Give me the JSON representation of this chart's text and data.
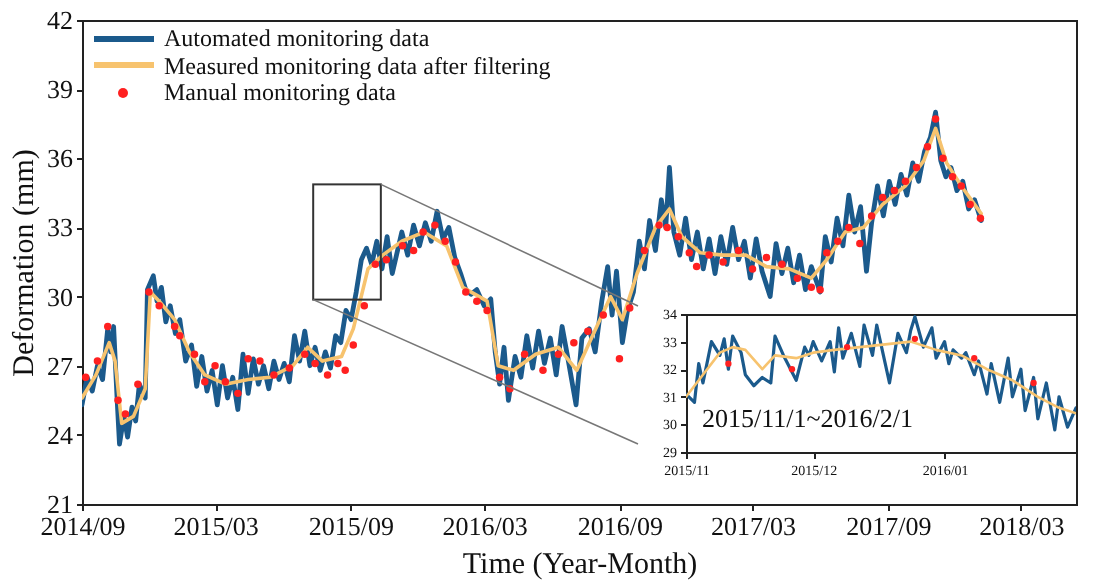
{
  "chart_data": [
    {
      "type": "line",
      "xlabel": "Time (Year-Month)",
      "ylabel": "Deformation (mm)",
      "xlim": [
        "2014-09-01",
        "2018-05-15"
      ],
      "ylim": [
        21,
        42
      ],
      "xticks": [
        {
          "value": "2014-09",
          "label": "2014/09"
        },
        {
          "value": "2015-03",
          "label": "2015/03"
        },
        {
          "value": "2015-09",
          "label": "2015/09"
        },
        {
          "value": "2016-03",
          "label": "2016/03"
        },
        {
          "value": "2016-09",
          "label": "2016/09"
        },
        {
          "value": "2017-03",
          "label": "2017/03"
        },
        {
          "value": "2017-09",
          "label": "2017/09"
        },
        {
          "value": "2018-03",
          "label": "2018/03"
        }
      ],
      "yticks": [
        21,
        24,
        27,
        30,
        33,
        36,
        39,
        42
      ],
      "legend": "top left",
      "series": [
        {
          "name": "Automated monitoring data",
          "color": "#1b5a8c",
          "x": [
            "2014-09-01",
            "2014-09-08",
            "2014-09-15",
            "2014-09-22",
            "2014-09-29",
            "2014-10-06",
            "2014-10-10",
            "2014-10-14",
            "2014-10-19",
            "2014-10-22",
            "2014-10-28",
            "2014-11-02",
            "2014-11-08",
            "2014-11-13",
            "2014-11-18",
            "2014-11-26",
            "2014-11-29",
            "2014-12-07",
            "2014-12-12",
            "2014-12-18",
            "2014-12-24",
            "2014-12-30",
            "2015-01-06",
            "2015-01-12",
            "2015-01-20",
            "2015-01-28",
            "2015-02-04",
            "2015-02-11",
            "2015-02-18",
            "2015-02-25",
            "2015-03-04",
            "2015-03-11",
            "2015-03-18",
            "2015-03-25",
            "2015-04-01",
            "2015-04-08",
            "2015-04-15",
            "2015-04-22",
            "2015-04-29",
            "2015-05-06",
            "2015-05-13",
            "2015-05-20",
            "2015-05-27",
            "2015-06-03",
            "2015-06-10",
            "2015-06-17",
            "2015-06-24",
            "2015-07-01",
            "2015-07-08",
            "2015-07-15",
            "2015-07-22",
            "2015-07-29",
            "2015-08-05",
            "2015-08-12",
            "2015-08-19",
            "2015-08-26",
            "2015-09-02",
            "2015-09-09",
            "2015-09-16",
            "2015-09-23",
            "2015-09-30",
            "2015-10-07",
            "2015-10-14",
            "2015-10-21",
            "2015-10-28",
            "2015-11-10",
            "2015-11-18",
            "2015-11-26",
            "2015-12-04",
            "2015-12-12",
            "2015-12-20",
            "2015-12-28",
            "2016-01-05",
            "2016-01-13",
            "2016-01-21",
            "2016-01-29",
            "2016-02-05",
            "2016-02-12",
            "2016-02-20",
            "2016-03-01",
            "2016-03-10",
            "2016-03-16",
            "2016-03-22",
            "2016-03-28",
            "2016-04-03",
            "2016-04-12",
            "2016-04-20",
            "2016-04-28",
            "2016-05-06",
            "2016-05-14",
            "2016-05-22",
            "2016-05-30",
            "2016-06-07",
            "2016-06-15",
            "2016-06-23",
            "2016-07-04",
            "2016-07-12",
            "2016-07-22",
            "2016-07-30",
            "2016-08-08",
            "2016-08-16",
            "2016-08-22",
            "2016-08-28",
            "2016-09-05",
            "2016-09-12",
            "2016-09-20",
            "2016-09-28",
            "2016-10-05",
            "2016-10-12",
            "2016-10-20",
            "2016-10-28",
            "2016-11-03",
            "2016-11-08",
            "2016-11-14",
            "2016-11-22",
            "2016-11-30",
            "2016-12-08",
            "2016-12-16",
            "2016-12-24",
            "2017-01-01",
            "2017-01-09",
            "2017-01-17",
            "2017-01-25",
            "2017-02-02",
            "2017-02-10",
            "2017-02-18",
            "2017-02-26",
            "2017-03-06",
            "2017-03-14",
            "2017-03-25",
            "2017-04-02",
            "2017-04-10",
            "2017-04-18",
            "2017-04-26",
            "2017-05-04",
            "2017-05-12",
            "2017-05-20",
            "2017-06-01",
            "2017-06-08",
            "2017-06-16",
            "2017-06-24",
            "2017-07-02",
            "2017-07-10",
            "2017-07-18",
            "2017-07-26",
            "2017-08-03",
            "2017-08-10",
            "2017-08-18",
            "2017-08-26",
            "2017-09-03",
            "2017-09-11",
            "2017-09-19",
            "2017-09-27",
            "2017-10-05",
            "2017-10-13",
            "2017-10-21",
            "2017-10-29",
            "2017-11-05",
            "2017-11-12",
            "2017-11-19",
            "2017-11-26",
            "2017-12-04",
            "2017-12-12",
            "2017-12-20",
            "2017-12-28",
            "2018-01-06"
          ],
          "values": [
            25.3,
            26.5,
            25.9,
            27.0,
            26.4,
            28.6,
            27.6,
            28.7,
            25.4,
            23.6,
            24.8,
            23.9,
            25.2,
            24.6,
            26.2,
            25.6,
            30.3,
            30.9,
            29.8,
            30.4,
            28.9,
            29.6,
            28.4,
            29.0,
            27.2,
            27.9,
            26.1,
            27.4,
            25.9,
            26.8,
            25.3,
            27.0,
            25.6,
            26.5,
            25.1,
            27.5,
            25.8,
            27.3,
            26.2,
            27.0,
            26.0,
            27.2,
            26.4,
            27.1,
            26.3,
            28.3,
            27.2,
            28.5,
            27.0,
            27.8,
            26.8,
            27.6,
            26.9,
            28.3,
            28.0,
            29.4,
            29.0,
            30.2,
            31.6,
            32.1,
            31.4,
            32.4,
            31.2,
            32.6,
            31.0,
            32.8,
            31.8,
            33.1,
            32.2,
            33.2,
            32.4,
            33.7,
            32.5,
            33.0,
            31.7,
            31.0,
            30.3,
            30.1,
            30.3,
            29.6,
            29.9,
            27.6,
            26.2,
            27.8,
            25.5,
            27.4,
            26.5,
            28.3,
            26.9,
            28.5,
            27.1,
            28.2,
            26.6,
            28.7,
            27.3,
            25.3,
            28.2,
            28.6,
            27.6,
            29.8,
            31.3,
            29.2,
            31.1,
            28.0,
            29.4,
            30.2,
            32.4,
            31.2,
            33.3,
            32.0,
            34.2,
            33.0,
            35.6,
            32.8,
            31.8,
            33.4,
            31.6,
            32.8,
            31.2,
            32.5,
            31.0,
            32.6,
            31.4,
            33.0,
            31.6,
            32.4,
            30.8,
            32.5,
            31.1,
            30.0,
            32.3,
            31.0,
            32.1,
            30.6,
            31.8,
            30.3,
            31.3,
            30.2,
            32.6,
            31.5,
            33.4,
            32.2,
            34.4,
            32.8,
            33.9,
            31.1,
            33.2,
            34.8,
            33.5,
            35.0,
            34.0,
            35.3,
            34.4,
            35.8,
            35.0,
            36.3,
            36.9,
            38.0,
            35.9,
            35.2,
            35.6,
            34.6,
            35.0,
            33.8,
            34.2,
            33.3
          ]
        },
        {
          "name": "Measured monitoring data after filtering",
          "color": "#f7c36e",
          "x": [
            "2014-09-01",
            "2014-09-20",
            "2014-10-08",
            "2014-10-16",
            "2014-10-25",
            "2014-11-10",
            "2014-11-26",
            "2014-12-03",
            "2014-12-15",
            "2015-01-05",
            "2015-01-25",
            "2015-02-15",
            "2015-03-15",
            "2015-04-15",
            "2015-05-15",
            "2015-06-15",
            "2015-07-05",
            "2015-07-25",
            "2015-08-20",
            "2015-09-05",
            "2015-09-25",
            "2015-10-15",
            "2015-11-10",
            "2015-12-10",
            "2016-01-10",
            "2016-02-01",
            "2016-03-05",
            "2016-03-20",
            "2016-04-10",
            "2016-05-10",
            "2016-06-10",
            "2016-07-05",
            "2016-07-25",
            "2016-08-20",
            "2016-09-05",
            "2016-09-25",
            "2016-10-20",
            "2016-11-08",
            "2016-11-25",
            "2016-12-20",
            "2017-01-20",
            "2017-02-20",
            "2017-03-20",
            "2017-04-20",
            "2017-05-20",
            "2017-06-10",
            "2017-07-05",
            "2017-07-30",
            "2017-08-25",
            "2017-09-25",
            "2017-10-20",
            "2017-11-05",
            "2017-11-20",
            "2017-12-10",
            "2018-01-06"
          ],
          "values": [
            25.6,
            26.6,
            28.0,
            27.2,
            24.5,
            24.8,
            26.0,
            30.2,
            29.8,
            29.0,
            27.6,
            26.6,
            26.2,
            26.4,
            26.5,
            27.0,
            27.8,
            27.2,
            27.4,
            28.6,
            31.2,
            31.8,
            32.4,
            32.8,
            32.2,
            30.4,
            29.8,
            27.0,
            26.8,
            27.5,
            27.8,
            26.8,
            28.2,
            30.0,
            29.0,
            31.0,
            33.0,
            33.8,
            32.6,
            31.9,
            31.8,
            31.8,
            31.3,
            31.2,
            30.8,
            31.6,
            32.8,
            33.0,
            34.0,
            34.8,
            35.9,
            37.3,
            35.8,
            34.8,
            33.6
          ]
        },
        {
          "name": "Manual monitoring data",
          "type": "scatter",
          "color": "#ff2020",
          "x": [
            "2014-09-06",
            "2014-09-22",
            "2014-10-06",
            "2014-10-20",
            "2014-10-30",
            "2014-11-16",
            "2014-12-01",
            "2014-12-15",
            "2015-01-05",
            "2015-01-12",
            "2015-02-01",
            "2015-02-15",
            "2015-03-01",
            "2015-03-15",
            "2015-04-01",
            "2015-04-15",
            "2015-05-01",
            "2015-05-20",
            "2015-06-10",
            "2015-07-01",
            "2015-07-15",
            "2015-08-01",
            "2015-08-15",
            "2015-08-25",
            "2015-09-05",
            "2015-09-20",
            "2015-10-05",
            "2015-10-20",
            "2015-11-11",
            "2015-11-26",
            "2015-12-09",
            "2015-12-25",
            "2016-01-08",
            "2016-01-22",
            "2016-02-05",
            "2016-02-20",
            "2016-03-05",
            "2016-03-22",
            "2016-04-05",
            "2016-04-25",
            "2016-05-20",
            "2016-06-10",
            "2016-07-01",
            "2016-07-20",
            "2016-08-10",
            "2016-09-01",
            "2016-09-15",
            "2016-10-05",
            "2016-10-25",
            "2016-11-05",
            "2016-11-20",
            "2016-12-05",
            "2016-12-15",
            "2017-01-01",
            "2017-01-20",
            "2017-02-10",
            "2017-03-01",
            "2017-03-20",
            "2017-04-10",
            "2017-05-01",
            "2017-05-20",
            "2017-06-01",
            "2017-06-10",
            "2017-06-25",
            "2017-07-10",
            "2017-07-25",
            "2017-08-10",
            "2017-08-25",
            "2017-09-10",
            "2017-09-25",
            "2017-10-10",
            "2017-10-25",
            "2017-11-05",
            "2017-11-15",
            "2017-11-28",
            "2017-12-10",
            "2017-12-22",
            "2018-01-05"
          ],
          "values": [
            26.5,
            27.2,
            28.7,
            25.5,
            24.9,
            26.2,
            30.2,
            29.6,
            28.7,
            28.3,
            27.5,
            26.3,
            27.0,
            26.3,
            25.8,
            27.3,
            27.2,
            26.6,
            26.9,
            27.5,
            27.1,
            26.6,
            27.1,
            26.8,
            27.9,
            29.6,
            31.4,
            31.6,
            32.2,
            32.0,
            32.8,
            33.1,
            32.4,
            31.5,
            30.2,
            29.8,
            29.4,
            26.5,
            26.0,
            27.5,
            26.8,
            27.5,
            28.0,
            28.5,
            29.2,
            27.3,
            29.5,
            32.0,
            33.1,
            33.0,
            32.6,
            31.9,
            31.3,
            31.8,
            31.5,
            32.0,
            31.2,
            31.7,
            31.4,
            30.8,
            30.4,
            30.3,
            31.9,
            32.4,
            33.0,
            32.3,
            33.5,
            34.3,
            34.6,
            35.0,
            35.6,
            36.5,
            37.7,
            36.0,
            35.2,
            34.8,
            34.0,
            33.4
          ]
        }
      ]
    },
    {
      "type": "line",
      "xlim": [
        "2015-11-01",
        "2016-02-01"
      ],
      "ylim": [
        29,
        34
      ],
      "xticks": [
        {
          "value": "2015-11",
          "label": "2015/11"
        },
        {
          "value": "2015-12",
          "label": "2015/12"
        },
        {
          "value": "2016-01",
          "label": "2016/01"
        }
      ],
      "yticks": [
        29,
        30,
        31,
        32,
        33,
        34
      ],
      "annotations": [
        "2015/11/1~2016/2/1"
      ],
      "series": [
        {
          "color": "#1b5a8c",
          "x": [
            "2015-11-01",
            "2015-11-03",
            "2015-11-04",
            "2015-11-05",
            "2015-11-07",
            "2015-11-09",
            "2015-11-10",
            "2015-11-11",
            "2015-11-12",
            "2015-11-14",
            "2015-11-15",
            "2015-11-17",
            "2015-11-19",
            "2015-11-21",
            "2015-11-22",
            "2015-11-24",
            "2015-11-25",
            "2015-11-27",
            "2015-11-29",
            "2015-11-30",
            "2015-12-01",
            "2015-12-03",
            "2015-12-05",
            "2015-12-06",
            "2015-12-07",
            "2015-12-08",
            "2015-12-10",
            "2015-12-12",
            "2015-12-13",
            "2015-12-15",
            "2015-12-16",
            "2015-12-18",
            "2015-12-19",
            "2015-12-21",
            "2015-12-23",
            "2015-12-24",
            "2015-12-25",
            "2015-12-27",
            "2015-12-29",
            "2015-12-30",
            "2016-01-01",
            "2016-01-02",
            "2016-01-03",
            "2016-01-05",
            "2016-01-06",
            "2016-01-08",
            "2016-01-09",
            "2016-01-11",
            "2016-01-12",
            "2016-01-14",
            "2016-01-16",
            "2016-01-17",
            "2016-01-19",
            "2016-01-20",
            "2016-01-22",
            "2016-01-23",
            "2016-01-25",
            "2016-01-27",
            "2016-01-28",
            "2016-01-30",
            "2016-02-01"
          ],
          "values": [
            31.1,
            30.8,
            32.2,
            31.5,
            33.0,
            32.5,
            33.1,
            32.0,
            33.2,
            32.6,
            31.8,
            31.4,
            31.7,
            31.5,
            33.2,
            32.5,
            32.2,
            31.6,
            32.8,
            32.5,
            33.0,
            32.3,
            33.0,
            31.9,
            33.5,
            32.4,
            33.3,
            32.1,
            33.6,
            32.5,
            33.6,
            32.2,
            31.5,
            33.3,
            32.6,
            33.4,
            33.9,
            32.8,
            33.5,
            32.4,
            33.0,
            32.2,
            32.7,
            32.4,
            32.6,
            31.8,
            32.3,
            31.1,
            32.2,
            30.8,
            32.4,
            31.0,
            32.0,
            30.5,
            31.7,
            30.2,
            31.5,
            29.8,
            31.0,
            29.9,
            30.6
          ]
        },
        {
          "color": "#f7c36e",
          "x": [
            "2015-11-01",
            "2015-11-05",
            "2015-11-09",
            "2015-11-12",
            "2015-11-15",
            "2015-11-19",
            "2015-11-22",
            "2015-11-27",
            "2015-12-01",
            "2015-12-06",
            "2015-12-12",
            "2015-12-18",
            "2015-12-24",
            "2015-12-30",
            "2016-01-05",
            "2016-01-11",
            "2016-01-17",
            "2016-01-23",
            "2016-01-28",
            "2016-02-01"
          ],
          "values": [
            31.0,
            31.8,
            32.6,
            32.8,
            32.7,
            32.0,
            32.5,
            32.4,
            32.6,
            32.7,
            32.8,
            32.9,
            33.0,
            32.7,
            32.5,
            32.0,
            31.6,
            31.0,
            30.6,
            30.4
          ]
        },
        {
          "type": "scatter",
          "color": "#ff2020",
          "x": [
            "2015-11-11",
            "2015-11-26",
            "2015-12-09",
            "2015-12-25",
            "2016-01-08",
            "2016-01-22"
          ],
          "values": [
            32.2,
            32.0,
            32.8,
            33.1,
            32.4,
            31.5
          ]
        }
      ]
    }
  ]
}
